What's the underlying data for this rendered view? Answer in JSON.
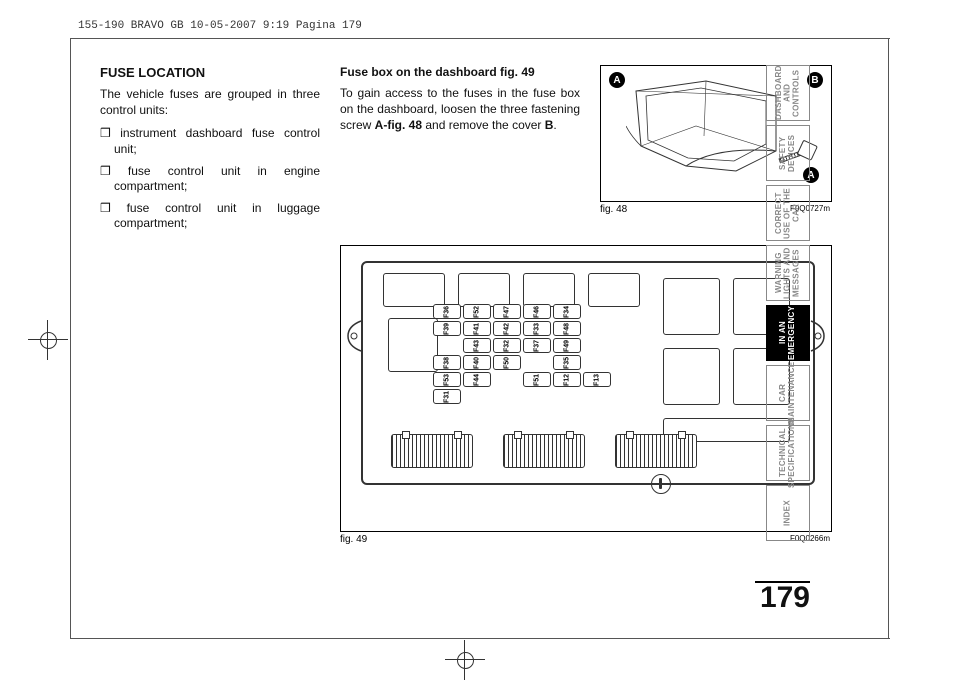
{
  "header_line": "155-190 BRAVO GB  10-05-2007  9:19  Pagina 179",
  "page_number": "179",
  "col1": {
    "heading": "FUSE LOCATION",
    "intro": "The vehicle fuses are grouped in three control units:",
    "bullets": [
      "❒ instrument dashboard fuse control unit;",
      "❒ fuse control unit in engine compartment;",
      "❒ fuse control unit in luggage compartment;"
    ]
  },
  "col2": {
    "heading": "Fuse box on the dashboard fig. 49",
    "para_parts": {
      "p1": "To gain access to the fuses in the fuse box on the dashboard, loosen the three fastening screw ",
      "bold": "A-fig. 48",
      "p2": " and remove the cover ",
      "bold2": "B",
      "p3": "."
    }
  },
  "fig48": {
    "caption": "fig. 48",
    "code": "F0Q0727m",
    "callouts": [
      "A",
      "B",
      "A"
    ]
  },
  "fig49": {
    "caption": "fig. 49",
    "code": "F0Q0266m",
    "fuses": [
      [
        "F36",
        "F52",
        "F47",
        "F46",
        "F34",
        ""
      ],
      [
        "F39",
        "F41",
        "F42",
        "F33",
        "F48",
        ""
      ],
      [
        "",
        "F43",
        "F32",
        "F37",
        "F49",
        ""
      ],
      [
        "F38",
        "F40",
        "F50",
        "",
        "F35",
        ""
      ],
      [
        "F53",
        "F44",
        "",
        "F51",
        "F12",
        "F13"
      ],
      [
        "F31",
        "",
        "",
        "",
        "",
        ""
      ]
    ]
  },
  "tabs": [
    {
      "label": "DASHBOARD AND CONTROLS",
      "active": false
    },
    {
      "label": "SAFETY DEVICES",
      "active": false
    },
    {
      "label": "CORRECT USE OF THE CAR",
      "active": false
    },
    {
      "label": "WARNING LIGHTS AND MESSAGES",
      "active": false
    },
    {
      "label": "IN AN EMERGENCY",
      "active": true
    },
    {
      "label": "CAR MAINTENANCE",
      "active": false
    },
    {
      "label": "TECHNICAL SPECIFICATIONS",
      "active": false
    },
    {
      "label": "INDEX",
      "active": false
    }
  ],
  "colors": {
    "text": "#111111",
    "muted": "#888888",
    "line": "#333333"
  }
}
